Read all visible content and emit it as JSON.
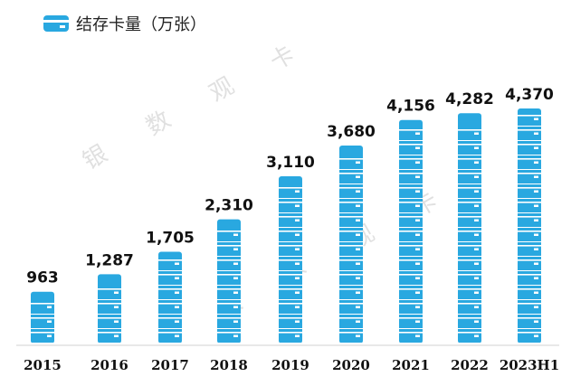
{
  "legend": {
    "label": "结存卡量（万张）",
    "icon": "card-icon"
  },
  "watermark": {
    "chars": [
      "银",
      "数",
      "观",
      "卡"
    ]
  },
  "colors": {
    "card": "#29a8e0",
    "card_stripe": "#ffffff",
    "axis": "#d0d0d0"
  },
  "chart_data": {
    "type": "bar",
    "categories": [
      "2015",
      "2016",
      "2017",
      "2018",
      "2019",
      "2020",
      "2021",
      "2022",
      "2023H1"
    ],
    "series": [
      {
        "name": "结存卡量（万张）",
        "values": [
          963,
          1287,
          1705,
          2310,
          3110,
          3680,
          4156,
          4282,
          4370
        ],
        "labels": [
          "963",
          "1,287",
          "1,705",
          "2,310",
          "3,110",
          "3,680",
          "4,156",
          "4,282",
          "4,370"
        ]
      }
    ],
    "ylim": [
      0,
      4370
    ],
    "grid": false,
    "legend_position": "top-left"
  }
}
